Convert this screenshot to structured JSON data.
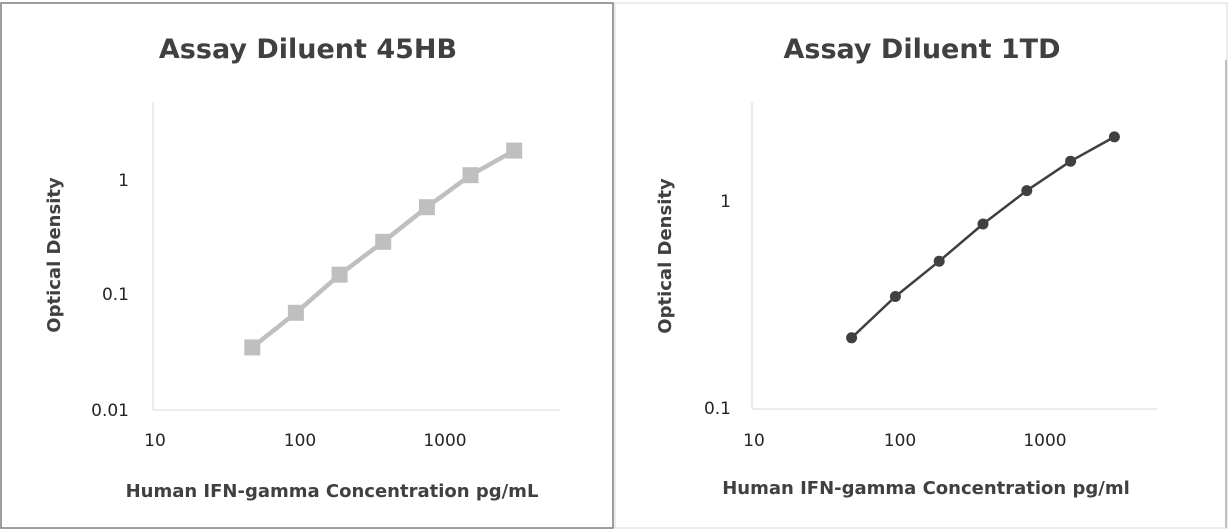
{
  "chart_data": [
    {
      "type": "line",
      "title": "Assay Diluent 45HB",
      "xlabel": "Human IFN-gamma  Concentration  pg/mL",
      "ylabel": "Optical Density",
      "x_scale": "log",
      "y_scale": "log",
      "xlim": [
        10,
        5000
      ],
      "ylim": [
        0.01,
        5
      ],
      "x_ticks": [
        "10",
        "100",
        "1000"
      ],
      "y_ticks": [
        "0.01",
        "0.1",
        "1"
      ],
      "grid": false,
      "legend": "none",
      "series": [
        {
          "color": "#bfbfbf",
          "marker": "square",
          "x": [
            46.875,
            93.75,
            187.5,
            375,
            750,
            1500,
            3000
          ],
          "y": [
            0.035,
            0.07,
            0.15,
            0.29,
            0.58,
            1.1,
            1.8
          ]
        }
      ]
    },
    {
      "type": "line",
      "title": "Assay Diluent 1TD",
      "xlabel": "Human IFN-gamma  Concentration  pg/ml",
      "ylabel": "Optical Density",
      "x_scale": "log",
      "y_scale": "log",
      "xlim": [
        10,
        5000
      ],
      "ylim": [
        0.1,
        3
      ],
      "x_ticks": [
        "10",
        "100",
        "1000"
      ],
      "y_ticks": [
        "0.1",
        "1"
      ],
      "grid": false,
      "legend": "none",
      "series": [
        {
          "color": "#404040",
          "marker": "circle",
          "x": [
            46.875,
            93.75,
            187.5,
            375,
            750,
            1500,
            3000
          ],
          "y": [
            0.22,
            0.35,
            0.52,
            0.79,
            1.15,
            1.6,
            2.1
          ]
        }
      ]
    }
  ]
}
